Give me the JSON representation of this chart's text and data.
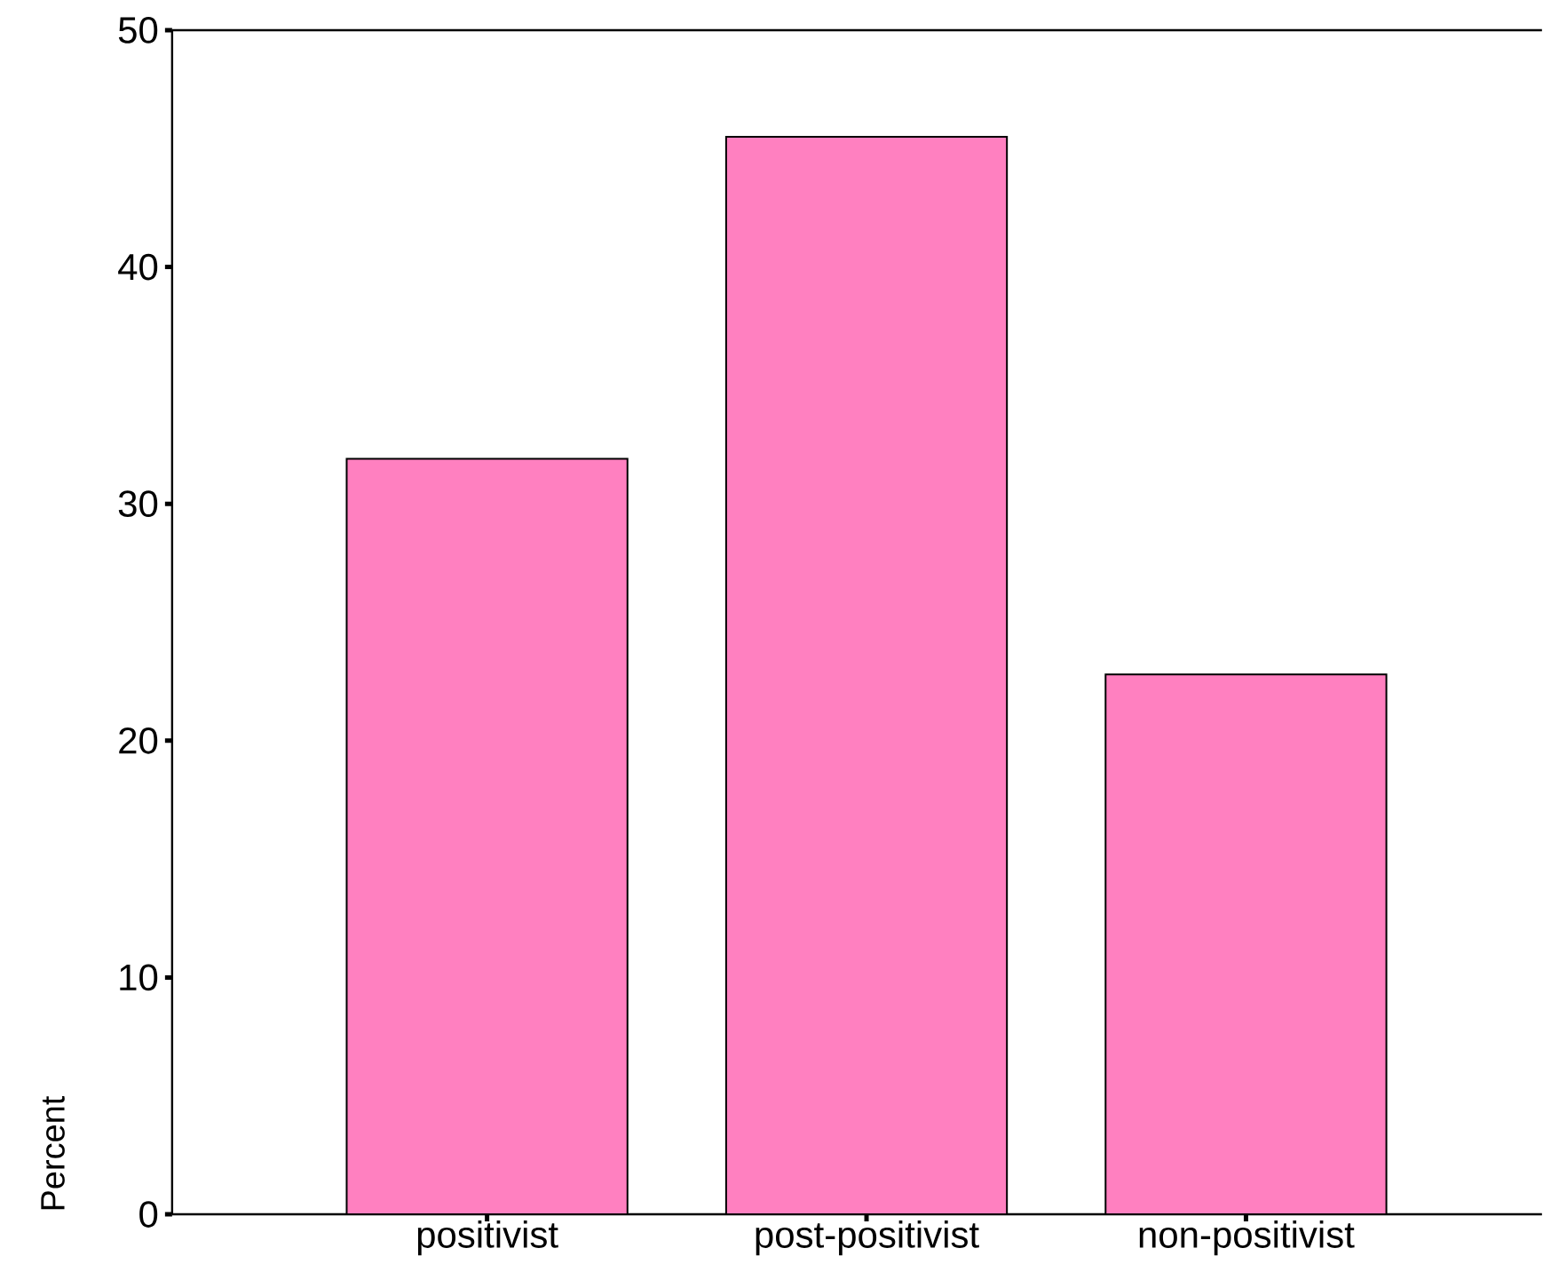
{
  "chart_data": {
    "type": "bar",
    "ylabel": "Percent",
    "categories": [
      "positivist",
      "post-positivist",
      "non-positivist"
    ],
    "values": [
      31.9,
      45.5,
      22.8
    ],
    "color": "#ff80c0",
    "ylim": [
      0,
      50
    ],
    "yticks": [
      0,
      10,
      20,
      30,
      40,
      50
    ]
  }
}
